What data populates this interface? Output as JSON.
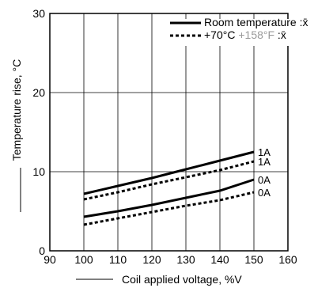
{
  "chart_data": {
    "type": "line",
    "title": "",
    "xlabel": "Coil applied voltage, %V",
    "ylabel": "Temperature rise, °C",
    "xlim": [
      90,
      160
    ],
    "ylim": [
      0,
      30
    ],
    "xticks": [
      90,
      100,
      110,
      120,
      130,
      140,
      150,
      160
    ],
    "yticks": [
      0,
      10,
      20,
      30
    ],
    "grid": true,
    "legend_position": "top-right",
    "legend": [
      {
        "style": "solid",
        "parts": [
          {
            "text": "Room temperature :",
            "color": "#000000"
          },
          {
            "text": "x̄",
            "color": "#000000"
          }
        ]
      },
      {
        "style": "dotted",
        "parts": [
          {
            "text": "+70°C ",
            "color": "#000000"
          },
          {
            "text": "+158°F",
            "color": "#9a9a9a"
          },
          {
            "text": " :",
            "color": "#000000"
          },
          {
            "text": "x̄",
            "color": "#000000"
          }
        ]
      }
    ],
    "series": [
      {
        "label": "1A",
        "style": "solid",
        "x": [
          100,
          110,
          120,
          130,
          140,
          150
        ],
        "y": [
          7.2,
          8.2,
          9.2,
          10.3,
          11.4,
          12.5
        ]
      },
      {
        "label": "1A",
        "style": "dotted",
        "x": [
          100,
          110,
          120,
          130,
          140,
          150
        ],
        "y": [
          6.5,
          7.4,
          8.4,
          9.3,
          10.2,
          11.3
        ]
      },
      {
        "label": "0A",
        "style": "solid",
        "x": [
          100,
          110,
          120,
          130,
          140,
          150
        ],
        "y": [
          4.3,
          5.0,
          5.8,
          6.7,
          7.6,
          9.0
        ]
      },
      {
        "label": "0A",
        "style": "dotted",
        "x": [
          100,
          110,
          120,
          130,
          140,
          150
        ],
        "y": [
          3.3,
          4.1,
          4.9,
          5.7,
          6.4,
          7.4
        ]
      }
    ]
  }
}
